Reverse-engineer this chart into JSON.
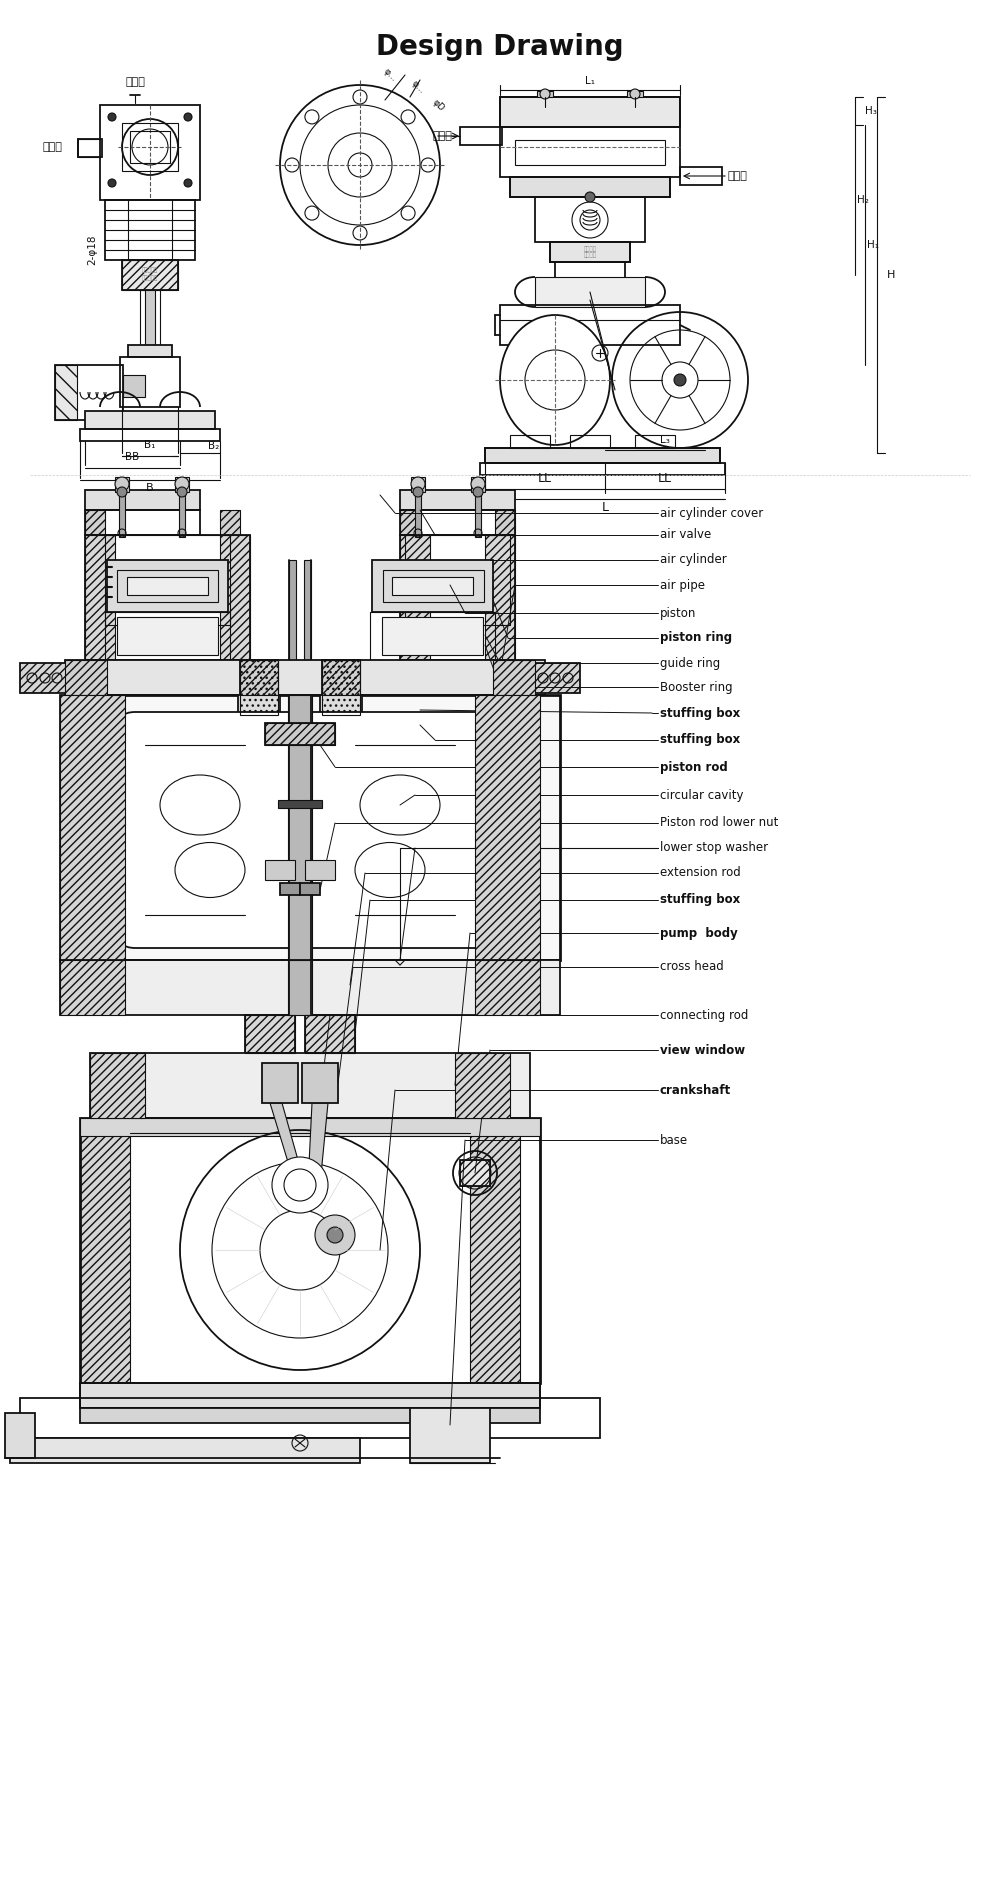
{
  "title": "Design Drawing",
  "title_fontsize": 20,
  "title_fontweight": "bold",
  "bg_color": "#ffffff",
  "line_color": "#111111",
  "fig_width": 10.0,
  "fig_height": 19.03,
  "labels": [
    "air cylinder cover",
    "air valve",
    "air cylinder",
    "air pipe",
    "piston",
    "piston ring",
    "guide ring",
    "Booster ring",
    "stuffing box",
    "stuffing box",
    "piston rod",
    "circular cavity",
    "Piston rod lower nut",
    "lower stop washer",
    "extension rod",
    "stuffing box",
    "pump  body",
    "cross head",
    "connecting rod",
    "view window",
    "crankshaft",
    "base"
  ],
  "label_bold": [
    false,
    false,
    false,
    false,
    false,
    true,
    false,
    false,
    true,
    true,
    true,
    false,
    false,
    false,
    false,
    true,
    true,
    false,
    false,
    true,
    true,
    false
  ]
}
